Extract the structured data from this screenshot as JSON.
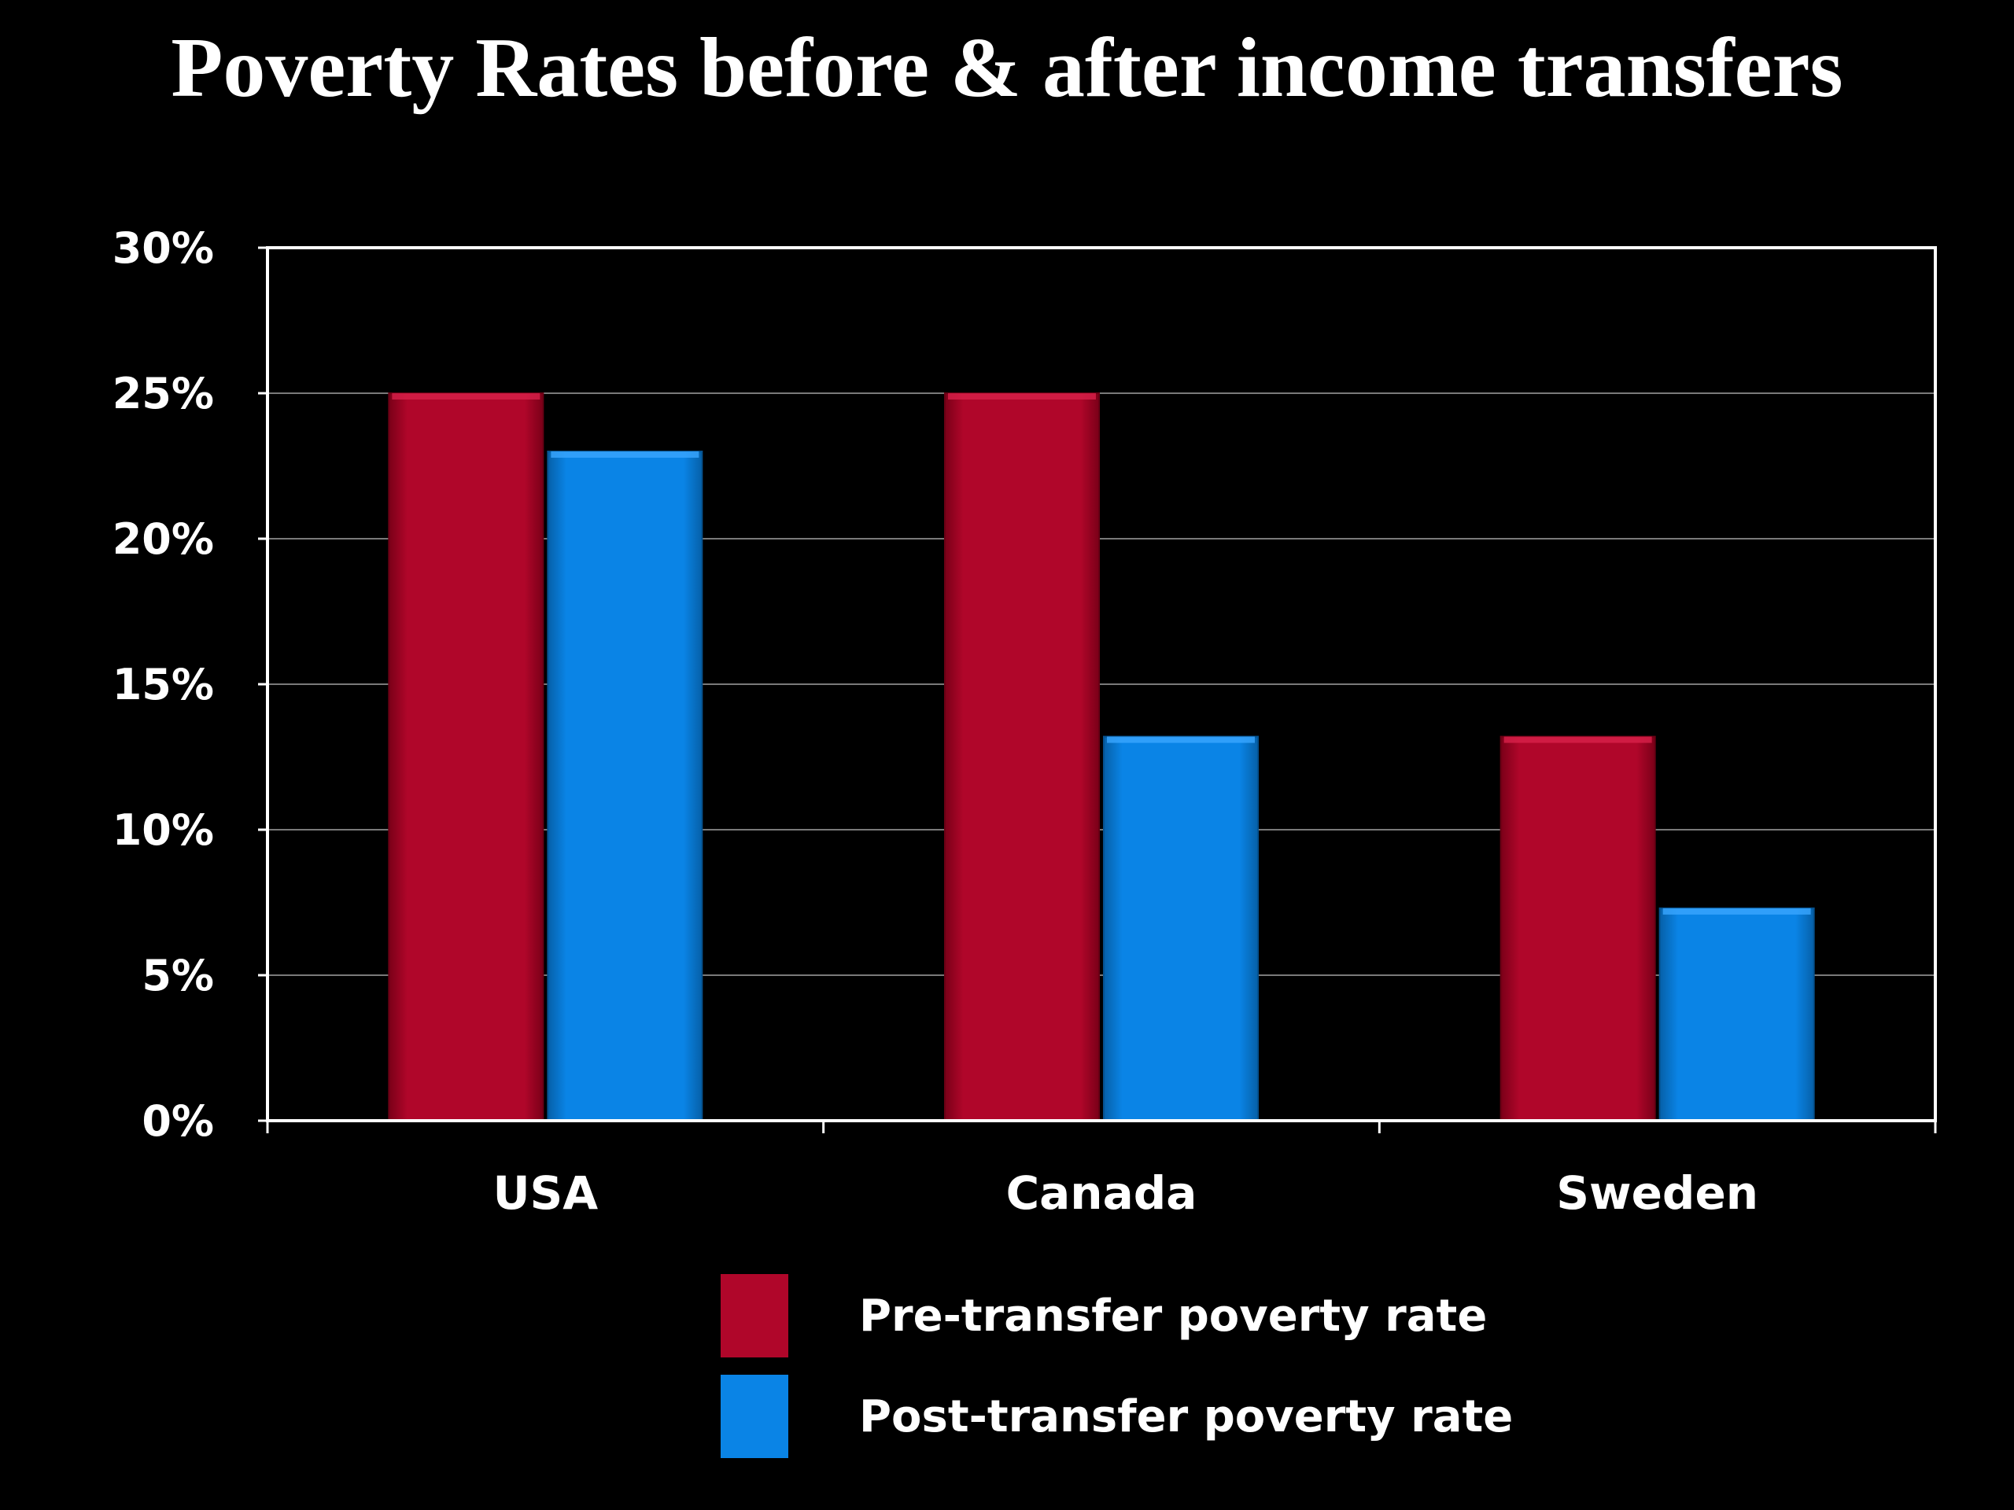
{
  "chart_data": {
    "type": "bar",
    "title": "Poverty Rates before & after income transfers",
    "xlabel": "",
    "ylabel": "",
    "categories": [
      "USA",
      "Canada",
      "Sweden"
    ],
    "series": [
      {
        "name": "Pre-transfer poverty rate",
        "values": [
          25,
          25,
          13.2
        ],
        "color": "#b0062a"
      },
      {
        "name": "Post-transfer poverty rate",
        "values": [
          23,
          13.2,
          7.3
        ],
        "color": "#0a84e6"
      }
    ],
    "ylim": [
      0,
      30
    ],
    "yticks": [
      {
        "value": 0,
        "label": "0%"
      },
      {
        "value": 5,
        "label": "5%"
      },
      {
        "value": 10,
        "label": "10%"
      },
      {
        "value": 15,
        "label": "15%"
      },
      {
        "value": 20,
        "label": "20%"
      },
      {
        "value": 25,
        "label": "25%"
      },
      {
        "value": 30,
        "label": "30%"
      }
    ],
    "grid": true,
    "legend_position": "bottom-center",
    "background": "#000000"
  }
}
